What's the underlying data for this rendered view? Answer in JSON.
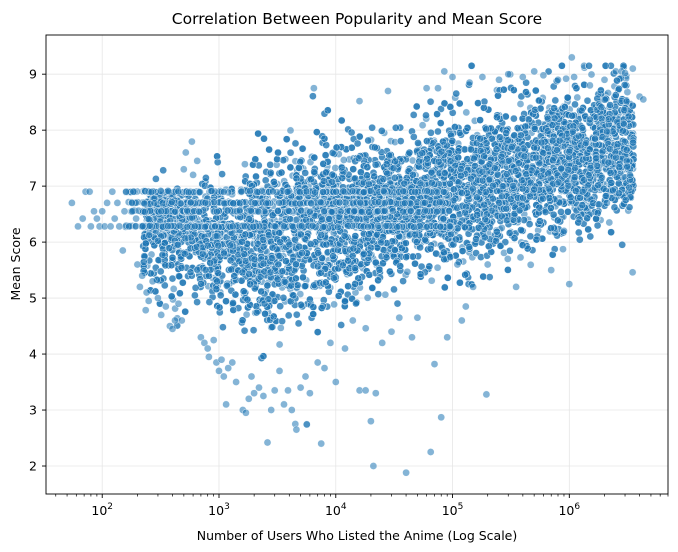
{
  "chart_data": {
    "type": "scatter",
    "title": "Correlation Between Popularity and Mean Score",
    "xlabel": "Number of Users Who Listed the Anime (Log Scale)",
    "ylabel": "Mean Score",
    "x_scale": "log",
    "xlim": [
      33,
      7000000
    ],
    "ylim": [
      1.5,
      9.7
    ],
    "x_ticks": [
      {
        "value": 100,
        "base": "10",
        "exp": "2"
      },
      {
        "value": 1000,
        "base": "10",
        "exp": "3"
      },
      {
        "value": 10000,
        "base": "10",
        "exp": "4"
      },
      {
        "value": 100000,
        "base": "10",
        "exp": "5"
      },
      {
        "value": 1000000,
        "base": "10",
        "exp": "6"
      }
    ],
    "y_ticks": [
      2,
      3,
      4,
      5,
      6,
      7,
      8,
      9
    ],
    "grid": true,
    "legend": "none",
    "point_color": "#1f77b4",
    "point_alpha": 0.55,
    "points": [
      [
        55,
        6.7
      ],
      [
        62,
        6.28
      ],
      [
        68,
        6.42
      ],
      [
        72,
        6.9
      ],
      [
        78,
        6.9
      ],
      [
        80,
        6.28
      ],
      [
        85,
        6.55
      ],
      [
        90,
        6.42
      ],
      [
        95,
        6.28
      ],
      [
        100,
        6.55
      ],
      [
        105,
        6.28
      ],
      [
        110,
        6.7
      ],
      [
        118,
        6.28
      ],
      [
        122,
        6.9
      ],
      [
        128,
        6.42
      ],
      [
        135,
        6.7
      ],
      [
        140,
        6.28
      ],
      [
        150,
        5.85
      ],
      [
        155,
        6.55
      ],
      [
        160,
        6.9
      ],
      [
        170,
        6.28
      ],
      [
        180,
        6.7
      ],
      [
        185,
        6.9
      ],
      [
        195,
        6.42
      ],
      [
        200,
        5.6
      ],
      [
        210,
        5.2
      ],
      [
        220,
        5.4
      ],
      [
        240,
        5.1
      ],
      [
        250,
        4.95
      ],
      [
        270,
        5.3
      ],
      [
        300,
        5.0
      ],
      [
        320,
        4.7
      ],
      [
        350,
        4.85
      ],
      [
        380,
        4.5
      ],
      [
        400,
        4.45
      ],
      [
        420,
        4.6
      ],
      [
        450,
        4.9
      ],
      [
        480,
        4.6
      ],
      [
        500,
        7.3
      ],
      [
        520,
        7.6
      ],
      [
        600,
        7.2
      ],
      [
        650,
        7.45
      ],
      [
        700,
        4.3
      ],
      [
        750,
        4.2
      ],
      [
        800,
        4.1
      ],
      [
        820,
        3.95
      ],
      [
        900,
        4.25
      ],
      [
        950,
        3.85
      ],
      [
        1000,
        3.7
      ],
      [
        1050,
        3.9
      ],
      [
        1100,
        3.6
      ],
      [
        1150,
        3.1
      ],
      [
        1200,
        3.75
      ],
      [
        1300,
        3.85
      ],
      [
        1400,
        3.5
      ],
      [
        1600,
        3.0
      ],
      [
        1700,
        2.95
      ],
      [
        1800,
        3.2
      ],
      [
        1900,
        3.6
      ],
      [
        2000,
        3.3
      ],
      [
        2200,
        3.4
      ],
      [
        2400,
        3.25
      ],
      [
        2600,
        2.42
      ],
      [
        2800,
        3.0
      ],
      [
        3000,
        3.35
      ],
      [
        3300,
        3.7
      ],
      [
        3600,
        3.1
      ],
      [
        3900,
        3.35
      ],
      [
        4200,
        3.0
      ],
      [
        4500,
        2.75
      ],
      [
        4600,
        2.65
      ],
      [
        5000,
        3.4
      ],
      [
        5500,
        3.6
      ],
      [
        6000,
        3.3
      ],
      [
        6500,
        8.75
      ],
      [
        7000,
        3.85
      ],
      [
        7500,
        2.4
      ],
      [
        8000,
        3.75
      ],
      [
        9000,
        4.2
      ],
      [
        10000,
        3.5
      ],
      [
        12000,
        4.1
      ],
      [
        14000,
        4.6
      ],
      [
        16000,
        3.35
      ],
      [
        18000,
        3.35
      ],
      [
        20000,
        2.8
      ],
      [
        21000,
        2.0
      ],
      [
        22000,
        3.3
      ],
      [
        25000,
        4.2
      ],
      [
        28000,
        8.7
      ],
      [
        30000,
        4.4
      ],
      [
        35000,
        4.65
      ],
      [
        40000,
        1.88
      ],
      [
        45000,
        4.3
      ],
      [
        50000,
        4.65
      ],
      [
        60000,
        8.75
      ],
      [
        65000,
        2.25
      ],
      [
        70000,
        3.82
      ],
      [
        75000,
        8.75
      ],
      [
        80000,
        2.87
      ],
      [
        85000,
        9.05
      ],
      [
        90000,
        4.3
      ],
      [
        100000,
        8.95
      ],
      [
        110000,
        5.6
      ],
      [
        120000,
        4.6
      ],
      [
        130000,
        4.85
      ],
      [
        140000,
        8.85
      ],
      [
        150000,
        5.2
      ],
      [
        180000,
        8.95
      ],
      [
        195000,
        3.28
      ],
      [
        200000,
        5.6
      ],
      [
        250000,
        8.9
      ],
      [
        300000,
        9.0
      ],
      [
        350000,
        5.2
      ],
      [
        400000,
        8.95
      ],
      [
        500000,
        9.05
      ],
      [
        600000,
        8.98
      ],
      [
        700000,
        5.5
      ],
      [
        800000,
        8.9
      ],
      [
        900000,
        6.2
      ],
      [
        1000000,
        5.25
      ],
      [
        1050000,
        9.3
      ],
      [
        1100000,
        8.95
      ],
      [
        1200000,
        7.9
      ],
      [
        1300000,
        6.9
      ],
      [
        1500000,
        8.8
      ],
      [
        1700000,
        7.5
      ],
      [
        1900000,
        7.15
      ],
      [
        2000000,
        8.9
      ],
      [
        2100000,
        6.7
      ],
      [
        2200000,
        6.35
      ],
      [
        2500000,
        9.05
      ],
      [
        2800000,
        9.05
      ],
      [
        3000000,
        9.02
      ],
      [
        3300000,
        7.2
      ],
      [
        3500000,
        9.1
      ],
      [
        4000000,
        8.6
      ],
      [
        4300000,
        8.55
      ]
    ]
  }
}
